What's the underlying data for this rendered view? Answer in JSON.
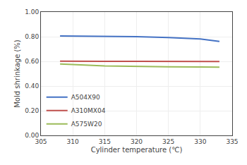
{
  "chart_data": {
    "type": "line",
    "x": [
      308,
      310,
      315,
      320,
      325,
      330,
      333
    ],
    "series": [
      {
        "name": "A504X90",
        "color": "#4472C4",
        "values": [
          0.806,
          0.805,
          0.803,
          0.8,
          0.793,
          0.782,
          0.762
        ]
      },
      {
        "name": "A310MX04",
        "color": "#C0504D",
        "values": [
          0.601,
          0.6,
          0.6,
          0.6,
          0.6,
          0.6,
          0.598
        ]
      },
      {
        "name": "A575W20",
        "color": "#9BBB59",
        "values": [
          0.578,
          0.575,
          0.563,
          0.557,
          0.555,
          0.554,
          0.553
        ]
      }
    ],
    "xlabel": "Cylinder temperature (℃)",
    "ylabel": "Mold shrinkage (%)",
    "xlim": [
      305,
      335
    ],
    "ylim": [
      0.0,
      1.0
    ],
    "xticks": [
      305,
      310,
      315,
      320,
      325,
      330,
      335
    ],
    "yticks": [
      {
        "value": 0.0,
        "label": "0.00"
      },
      {
        "value": 0.2,
        "label": "0.20"
      },
      {
        "value": 0.4,
        "label": "0.40"
      },
      {
        "value": 0.6,
        "label": "0.60"
      },
      {
        "value": 0.8,
        "label": "0.80"
      },
      {
        "value": 1.0,
        "label": "1.00"
      }
    ],
    "grid": true,
    "legend": "lower left"
  }
}
